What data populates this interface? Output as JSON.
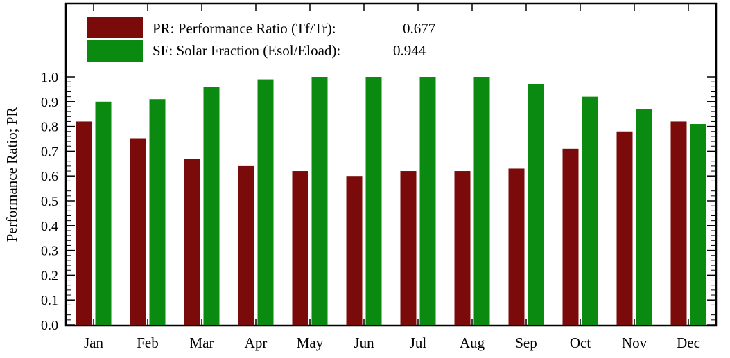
{
  "chart_data": {
    "type": "bar",
    "title": "",
    "xlabel": "",
    "ylabel": "Performance Ratio; PR",
    "ylim": [
      0,
      1.0
    ],
    "yticks": [
      "0.0",
      "0.1",
      "0.2",
      "0.3",
      "0.4",
      "0.5",
      "0.6",
      "0.7",
      "0.8",
      "0.9",
      "1.0"
    ],
    "categories": [
      "Jan",
      "Feb",
      "Mar",
      "Apr",
      "May",
      "Jun",
      "Jul",
      "Aug",
      "Sep",
      "Oct",
      "Nov",
      "Dec"
    ],
    "series": [
      {
        "name": "PR: Performance Ratio (Tf/Tr):",
        "summary_value": "0.677",
        "color": "#7b0a0a",
        "values": [
          0.82,
          0.75,
          0.67,
          0.64,
          0.62,
          0.6,
          0.62,
          0.62,
          0.63,
          0.71,
          0.78,
          0.82
        ]
      },
      {
        "name": "SF: Solar Fraction (Esol/Eload):",
        "summary_value": "0.944",
        "color": "#0a8a10",
        "values": [
          0.9,
          0.91,
          0.96,
          0.99,
          1.0,
          1.0,
          1.0,
          1.0,
          0.97,
          0.92,
          0.87,
          0.81
        ]
      }
    ],
    "grid": false,
    "legend_position": "top-left"
  }
}
